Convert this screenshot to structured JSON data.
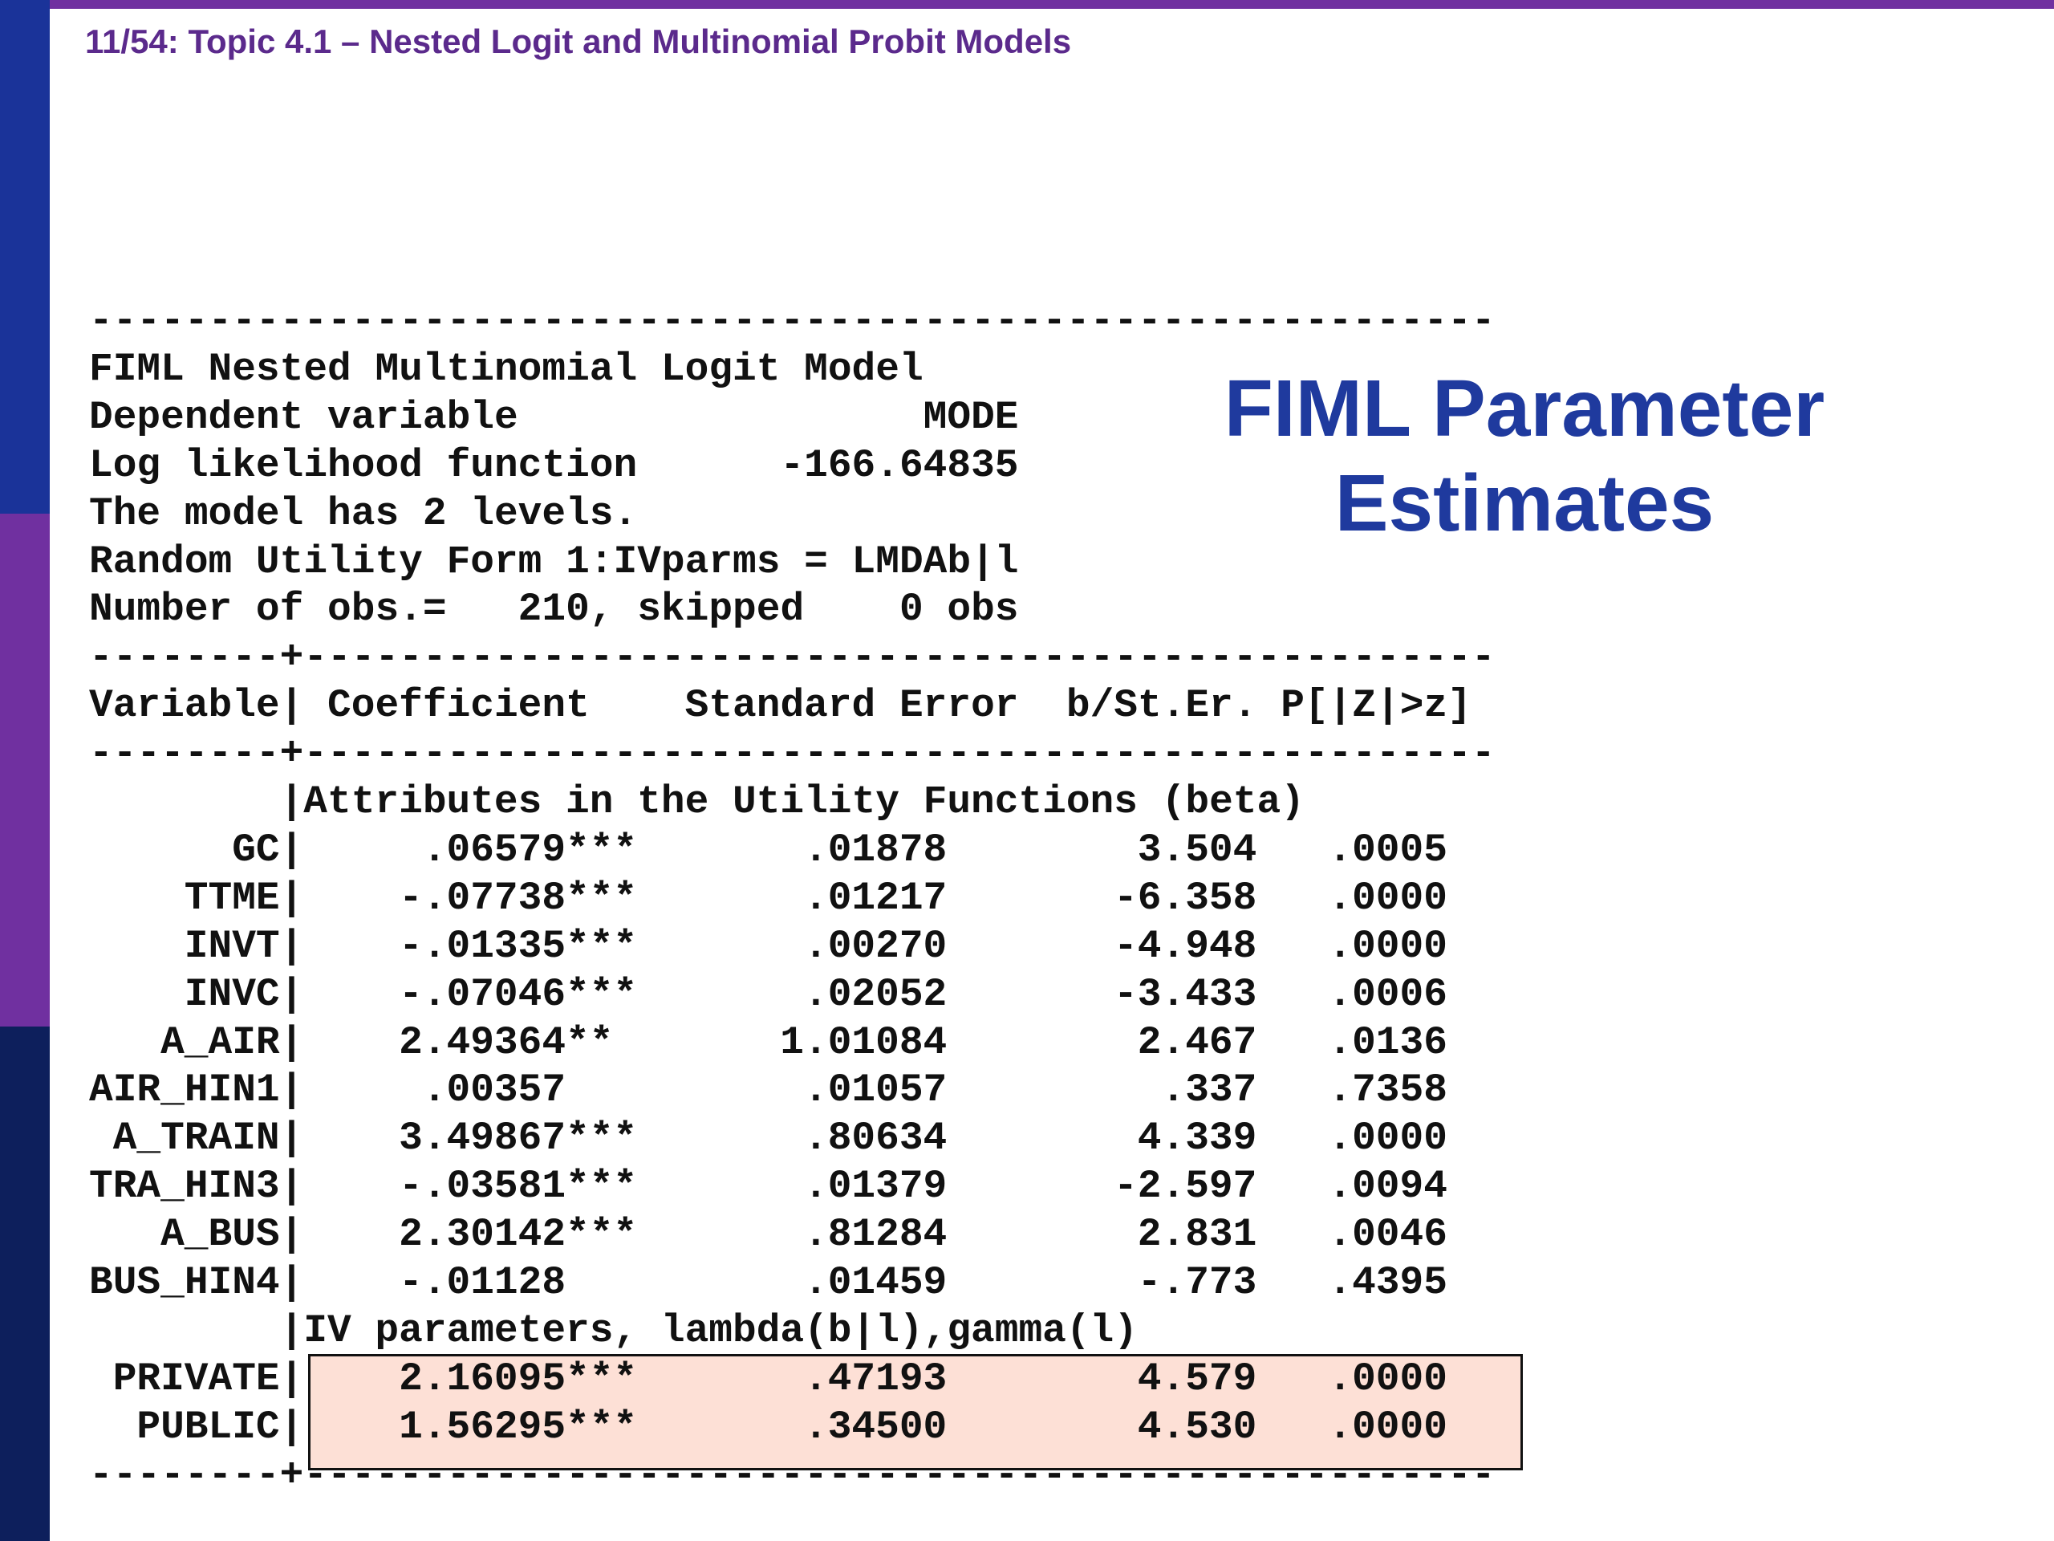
{
  "header": {
    "title": "11/54: Topic 4.1 – Nested Logit and Multinomial Probit Models"
  },
  "side_title": [
    "FIML Parameter",
    "Estimates"
  ],
  "output": {
    "rule": "-----------------------------------------------------------",
    "divider": "--------+--------------------------------------------------",
    "model_info": [
      "FIML Nested Multinomial Logit Model",
      "Dependent variable                 MODE",
      "Log likelihood function      -166.64835",
      "The model has 2 levels.",
      "Random Utility Form 1:IVparms = LMDAb|l",
      "Number of obs.=   210, skipped    0 obs"
    ],
    "column_header": "Variable| Coefficient    Standard Error  b/St.Er. P[|Z|>z]",
    "sections": [
      {
        "heading": "|Attributes in the Utility Functions (beta)",
        "rows": [
          [
            "GC|",
            ".06579***",
            ".01878",
            "3.504",
            ".0005"
          ],
          [
            "TTME|",
            "-.07738***",
            ".01217",
            "-6.358",
            ".0000"
          ],
          [
            "INVT|",
            "-.01335***",
            ".00270",
            "-4.948",
            ".0000"
          ],
          [
            "INVC|",
            "-.07046***",
            ".02052",
            "-3.433",
            ".0006"
          ],
          [
            "A_AIR|",
            "2.49364**",
            "1.01084",
            "2.467",
            ".0136"
          ],
          [
            "AIR_HIN1|",
            ".00357",
            ".01057",
            ".337",
            ".7358"
          ],
          [
            "A_TRAIN|",
            "3.49867***",
            ".80634",
            "4.339",
            ".0000"
          ],
          [
            "TRA_HIN3|",
            "-.03581***",
            ".01379",
            "-2.597",
            ".0094"
          ],
          [
            "A_BUS|",
            "2.30142***",
            ".81284",
            "2.831",
            ".0046"
          ],
          [
            "BUS_HIN4|",
            "-.01128",
            ".01459",
            "-.773",
            ".4395"
          ]
        ]
      },
      {
        "heading": "|IV parameters, lambda(b|l),gamma(l)",
        "rows": [
          [
            "PRIVATE|",
            "2.16095***",
            ".47193",
            "4.579",
            ".0000"
          ],
          [
            "PUBLIC|",
            "1.56295***",
            ".34500",
            "4.530",
            ".0000"
          ]
        ]
      }
    ]
  }
}
